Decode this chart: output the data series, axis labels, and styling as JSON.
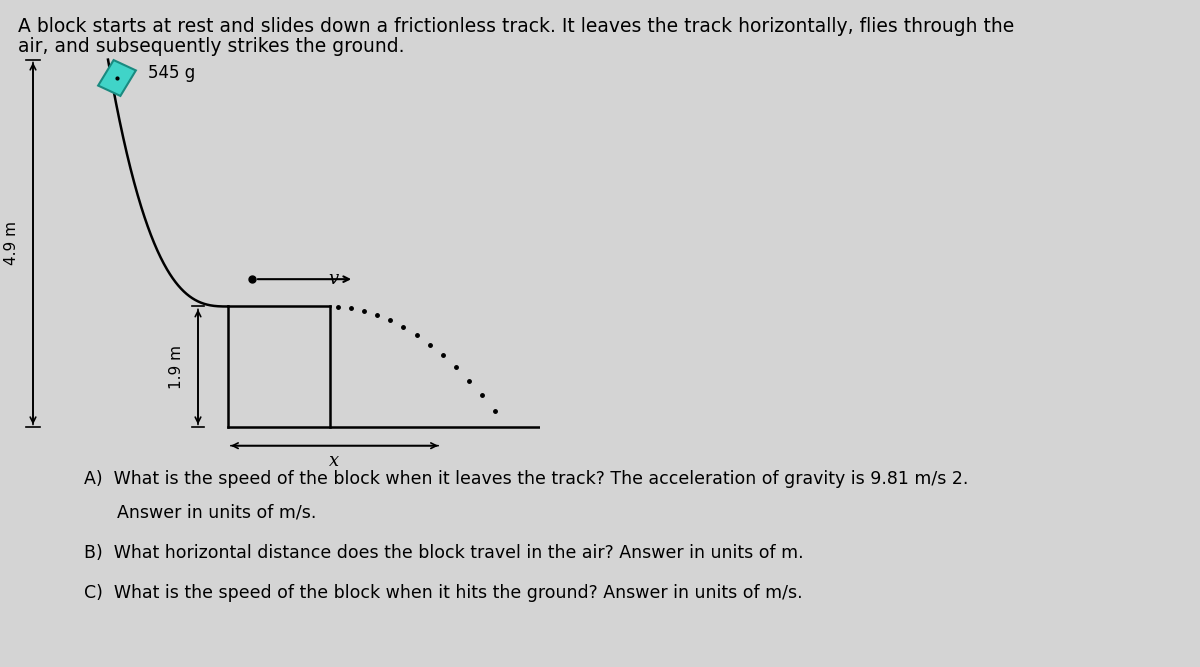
{
  "bg_color": "#d4d4d4",
  "title_line1": "A block starts at rest and slides down a frictionless track. It leaves the track horizontally, flies through the",
  "title_line2": "air, and subsequently strikes the ground.",
  "title_fontsize": 13.5,
  "mass_label": "545 g",
  "height_label_4_9": "4.9 m",
  "height_label_1_9": "1.9 m",
  "velocity_label": "v",
  "distance_label": "x",
  "block_color": "#40d4c8",
  "block_edge_color": "#1a8a80",
  "q_fontsize": 12.5,
  "questions": [
    [
      "A)",
      "  What is the speed of the block when it leaves the track? The acceleration of gravity is 9.81 m/s 2."
    ],
    [
      "",
      "      Answer in units of m/s."
    ],
    [
      "B)",
      "  What horizontal distance does the block travel in the air? Answer in units of m."
    ],
    [
      "C)",
      "  What is the speed of the block when it hits the ground? Answer in units of m/s."
    ]
  ]
}
